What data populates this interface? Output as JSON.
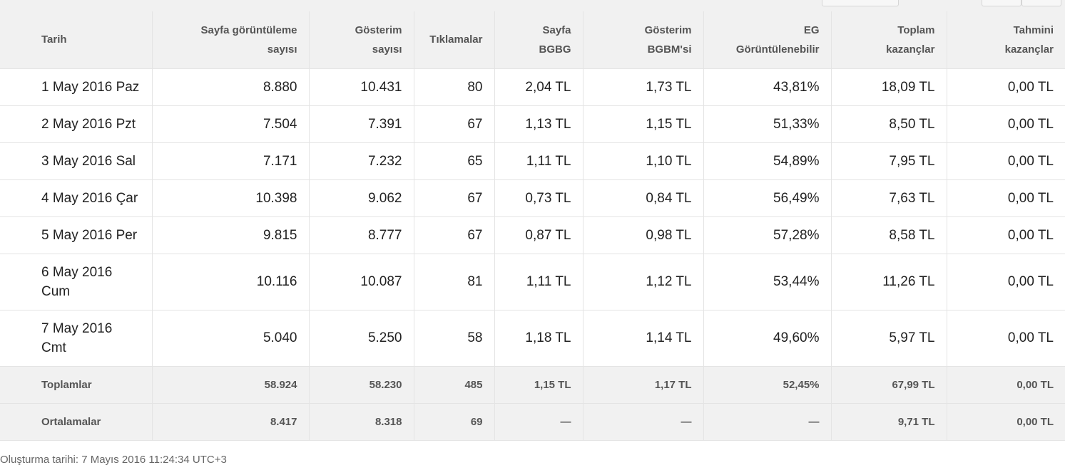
{
  "columns": [
    [
      "Tarih"
    ],
    [
      "Sayfa görüntüleme",
      "sayısı"
    ],
    [
      "Gösterim",
      "sayısı"
    ],
    [
      "Tıklamalar"
    ],
    [
      "Sayfa",
      "BGBG"
    ],
    [
      "Gösterim",
      "BGBM'si"
    ],
    [
      "EG",
      "Görüntülenebilir"
    ],
    [
      "Toplam",
      "kazançlar"
    ],
    [
      "Tahmini",
      "kazançlar"
    ]
  ],
  "rows": [
    {
      "date": [
        "1 May 2016 Paz"
      ],
      "pageviews": "8.880",
      "impressions": "10.431",
      "clicks": "80",
      "page_rpm": "2,04 TL",
      "impression_rpm": "1,73 TL",
      "viewable": "43,81%",
      "total_earnings": "18,09 TL",
      "estimated_earnings": "0,00 TL"
    },
    {
      "date": [
        "2 May 2016 Pzt"
      ],
      "pageviews": "7.504",
      "impressions": "7.391",
      "clicks": "67",
      "page_rpm": "1,13 TL",
      "impression_rpm": "1,15 TL",
      "viewable": "51,33%",
      "total_earnings": "8,50 TL",
      "estimated_earnings": "0,00 TL"
    },
    {
      "date": [
        "3 May 2016 Sal"
      ],
      "pageviews": "7.171",
      "impressions": "7.232",
      "clicks": "65",
      "page_rpm": "1,11 TL",
      "impression_rpm": "1,10 TL",
      "viewable": "54,89%",
      "total_earnings": "7,95 TL",
      "estimated_earnings": "0,00 TL"
    },
    {
      "date": [
        "4 May 2016 Çar"
      ],
      "pageviews": "10.398",
      "impressions": "9.062",
      "clicks": "67",
      "page_rpm": "0,73 TL",
      "impression_rpm": "0,84 TL",
      "viewable": "56,49%",
      "total_earnings": "7,63 TL",
      "estimated_earnings": "0,00 TL"
    },
    {
      "date": [
        "5 May 2016 Per"
      ],
      "pageviews": "9.815",
      "impressions": "8.777",
      "clicks": "67",
      "page_rpm": "0,87 TL",
      "impression_rpm": "0,98 TL",
      "viewable": "57,28%",
      "total_earnings": "8,58 TL",
      "estimated_earnings": "0,00 TL"
    },
    {
      "date": [
        "6 May 2016",
        "Cum"
      ],
      "pageviews": "10.116",
      "impressions": "10.087",
      "clicks": "81",
      "page_rpm": "1,11 TL",
      "impression_rpm": "1,12 TL",
      "viewable": "53,44%",
      "total_earnings": "11,26 TL",
      "estimated_earnings": "0,00 TL"
    },
    {
      "date": [
        "7 May 2016",
        "Cmt"
      ],
      "pageviews": "5.040",
      "impressions": "5.250",
      "clicks": "58",
      "page_rpm": "1,18 TL",
      "impression_rpm": "1,14 TL",
      "viewable": "49,60%",
      "total_earnings": "5,97 TL",
      "estimated_earnings": "0,00 TL"
    }
  ],
  "totals": {
    "label": "Toplamlar",
    "pageviews": "58.924",
    "impressions": "58.230",
    "clicks": "485",
    "page_rpm": "1,15 TL",
    "impression_rpm": "1,17 TL",
    "viewable": "52,45%",
    "total_earnings": "67,99 TL",
    "estimated_earnings": "0,00 TL"
  },
  "averages": {
    "label": "Ortalamalar",
    "pageviews": "8.417",
    "impressions": "8.318",
    "clicks": "69",
    "page_rpm": "—",
    "impression_rpm": "—",
    "viewable": "—",
    "total_earnings": "9,71 TL",
    "estimated_earnings": "0,00 TL"
  },
  "footer": {
    "created": "Oluşturma tarihi: 7 Mayıs 2016 11:24:34 UTC+3"
  }
}
